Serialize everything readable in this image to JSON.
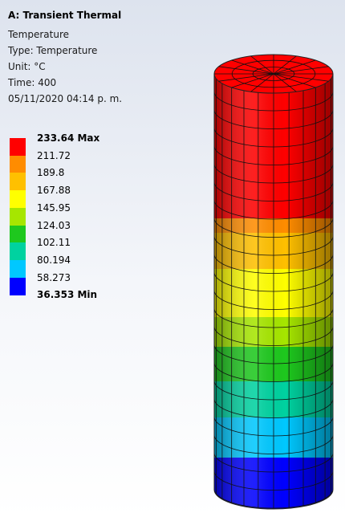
{
  "header": {
    "title": "A: Transient Thermal",
    "lines": [
      "Temperature",
      "Type: Temperature",
      "Unit: °C",
      "Time: 400",
      "05/11/2020 04:14 p. m."
    ]
  },
  "legend": {
    "labels": [
      "233.64 Max",
      "211.72",
      "189.8",
      "167.88",
      "145.95",
      "124.03",
      "102.11",
      "80.194",
      "58.273",
      "36.353 Min"
    ],
    "colors": [
      "#ff0000",
      "#ff8c00",
      "#ffc000",
      "#ffff00",
      "#a6e600",
      "#1ec81e",
      "#00d2a0",
      "#00c8ff",
      "#0000ff"
    ]
  }
}
